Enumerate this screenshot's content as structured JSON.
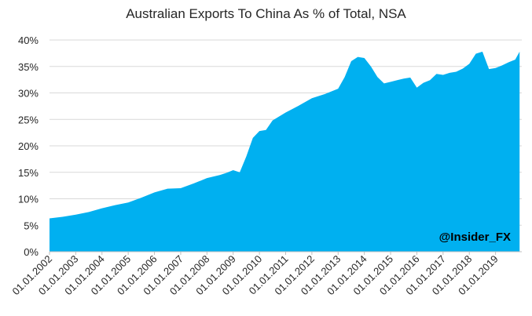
{
  "watermark": "@Insider_FX",
  "chart_data": {
    "type": "area",
    "title": "Australian Exports To China As % of Total, NSA",
    "xlabel": "",
    "ylabel": "",
    "y_unit": "%",
    "ylim": [
      0,
      40
    ],
    "y_ticks": [
      "0%",
      "5%",
      "10%",
      "15%",
      "20%",
      "25%",
      "30%",
      "35%",
      "40%"
    ],
    "x_ticks": [
      "01.01.2002",
      "01.01.2003",
      "01.01.2004",
      "01.01.2005",
      "01.01.2006",
      "01.01.2007",
      "01.01.2008",
      "01.01.2009",
      "01.01.2010",
      "01.01.2011",
      "01.01.2012",
      "01.01.2013",
      "01.01.2014",
      "01.01.2015",
      "01.01.2016",
      "01.01.2017",
      "01.01.2018",
      "01.01.2019"
    ],
    "grid": true,
    "legend": "none",
    "color": "#00B0F0",
    "series": [
      {
        "x": [
          "2002-01",
          "2002-07",
          "2003-01",
          "2003-07",
          "2004-01",
          "2004-07",
          "2005-01",
          "2005-07",
          "2006-01",
          "2006-07",
          "2007-01",
          "2007-07",
          "2008-01",
          "2008-07",
          "2008-10",
          "2009-01",
          "2009-04",
          "2009-07",
          "2009-10",
          "2010-01",
          "2010-04",
          "2010-07",
          "2011-01",
          "2011-07",
          "2012-01",
          "2012-07",
          "2013-01",
          "2013-04",
          "2013-07",
          "2013-10",
          "2014-01",
          "2014-04",
          "2014-07",
          "2014-10",
          "2015-01",
          "2015-04",
          "2015-07",
          "2015-10",
          "2016-01",
          "2016-04",
          "2016-07",
          "2016-10",
          "2017-01",
          "2017-04",
          "2017-07",
          "2017-10",
          "2018-01",
          "2018-04",
          "2018-07",
          "2018-10",
          "2019-01",
          "2019-04",
          "2019-07",
          "2019-10",
          "2019-12"
        ],
        "values": [
          6.3,
          6.6,
          7.0,
          7.5,
          8.2,
          8.8,
          9.3,
          10.2,
          11.2,
          11.9,
          12.0,
          12.9,
          13.9,
          14.5,
          14.9,
          15.4,
          15.0,
          18.0,
          21.5,
          22.8,
          23.0,
          24.8,
          26.3,
          27.6,
          29.0,
          29.8,
          30.8,
          33.0,
          36.0,
          36.8,
          36.6,
          35.0,
          33.0,
          31.8,
          32.1,
          32.4,
          32.7,
          32.9,
          31.0,
          31.9,
          32.4,
          33.6,
          33.4,
          33.8,
          34.0,
          34.6,
          35.5,
          37.4,
          37.8,
          34.5,
          34.7,
          35.2,
          35.8,
          36.3,
          37.8
        ],
        "values_note": ""
      }
    ]
  }
}
